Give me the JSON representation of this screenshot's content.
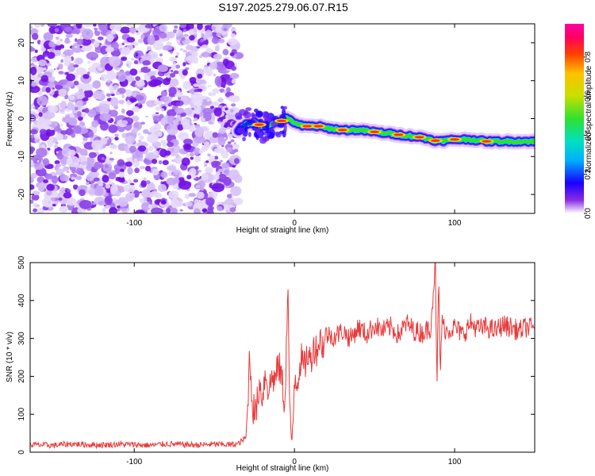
{
  "title": "S197.2025.279.06.07.R15",
  "chart_data": [
    {
      "type": "heatmap",
      "xlabel": "Height of straight line (km)",
      "ylabel": "Frequency (Hz)",
      "xlim": [
        -165,
        150
      ],
      "ylim": [
        -25,
        25
      ],
      "x_ticks": [
        -100,
        0,
        100
      ],
      "y_ticks": [
        -20,
        -10,
        0,
        10,
        20
      ],
      "noise_region_x": [
        -165,
        -35
      ],
      "signal_ridge": {
        "x": [
          -35,
          -30,
          -25,
          -20,
          -15,
          -10,
          -5,
          0,
          5,
          10,
          15,
          20,
          30,
          40,
          50,
          60,
          70,
          80,
          90,
          100,
          110,
          120,
          130,
          140,
          150
        ],
        "y": [
          -3,
          -1.5,
          -1,
          -2,
          -1.5,
          -1,
          0,
          -1,
          -2,
          -2,
          -2,
          -2.5,
          -3,
          -3,
          -3.5,
          -4,
          -4.5,
          -5,
          -6,
          -5.5,
          -5.5,
          -6,
          -6,
          -6,
          -6
        ]
      },
      "colorbar": {
        "label": "Normalized spectral amplitude",
        "ticks": [
          0.0,
          0.2,
          0.4,
          0.6,
          0.8
        ],
        "range": [
          0,
          0.97
        ]
      },
      "grid": false
    },
    {
      "type": "line",
      "xlabel": "Height of straight line (km)",
      "ylabel": "SNR (10 * v/v)",
      "xlim": [
        -165,
        150
      ],
      "ylim": [
        0,
        500
      ],
      "x_ticks": [
        -100,
        0,
        100
      ],
      "y_ticks": [
        0,
        100,
        200,
        300,
        400,
        500
      ],
      "color": "#e83a3a",
      "grid": false,
      "series": [
        {
          "x": [
            -165,
            -150,
            -140,
            -130,
            -120,
            -110,
            -100,
            -90,
            -80,
            -70,
            -60,
            -50,
            -40,
            -35,
            -30,
            -28,
            -26,
            -24,
            -22,
            -20,
            -18,
            -16,
            -14,
            -12,
            -10,
            -8,
            -6,
            -4,
            -3,
            -2,
            -1,
            0,
            2,
            4,
            6,
            8,
            10,
            12,
            14,
            16,
            18,
            20,
            25,
            30,
            35,
            40,
            45,
            50,
            55,
            60,
            65,
            70,
            75,
            80,
            85,
            88,
            89,
            90,
            91,
            92,
            95,
            100,
            105,
            110,
            115,
            120,
            125,
            130,
            135,
            140,
            145,
            150
          ],
          "y": [
            20,
            18,
            22,
            20,
            19,
            21,
            20,
            18,
            22,
            20,
            19,
            21,
            20,
            22,
            40,
            255,
            120,
            100,
            180,
            150,
            210,
            160,
            200,
            190,
            230,
            200,
            120,
            440,
            100,
            30,
            60,
            200,
            190,
            250,
            220,
            260,
            240,
            280,
            270,
            300,
            280,
            310,
            305,
            320,
            300,
            330,
            310,
            335,
            320,
            330,
            310,
            340,
            320,
            315,
            330,
            500,
            150,
            470,
            200,
            340,
            320,
            330,
            310,
            340,
            325,
            330,
            320,
            335,
            330,
            320,
            330,
            325
          ]
        }
      ]
    }
  ]
}
